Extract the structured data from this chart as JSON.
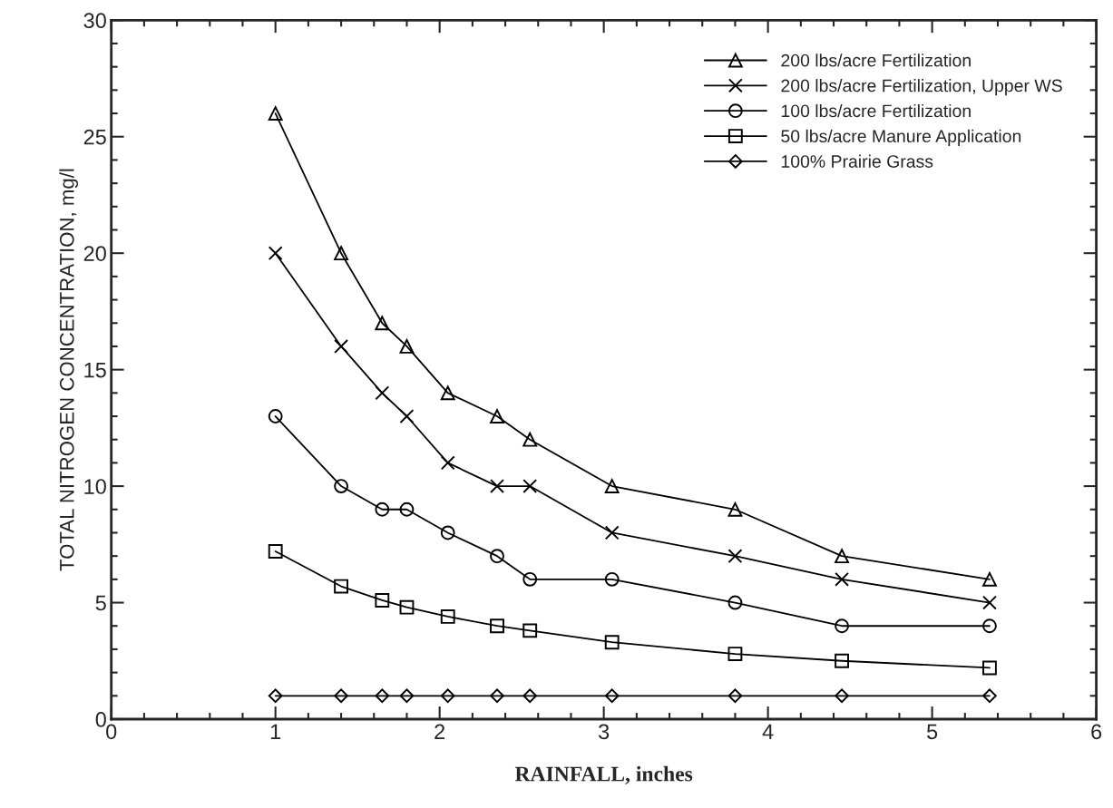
{
  "chart_data": {
    "type": "line",
    "xlabel": "RAINFALL, inches",
    "ylabel": "TOTAL NITROGEN CONCENTRATION, mg/l",
    "x": [
      1.0,
      1.4,
      1.65,
      1.8,
      2.05,
      2.35,
      2.55,
      3.05,
      3.8,
      4.45,
      5.35
    ],
    "series": [
      {
        "name": "200 lbs/acre Fertilization",
        "color": "#000000",
        "marker": "triangle",
        "values": [
          26,
          20,
          17,
          16,
          14,
          13,
          12,
          10,
          9,
          7,
          6
        ]
      },
      {
        "name": "200 lbs/acre Fertilization, Upper WS",
        "color": "#000000",
        "marker": "cross",
        "values": [
          20,
          16,
          14,
          13,
          11,
          10,
          10,
          8,
          7,
          6,
          5
        ]
      },
      {
        "name": "100 lbs/acre Fertilization",
        "color": "#000000",
        "marker": "circle",
        "values": [
          13,
          10,
          9,
          9,
          8,
          7,
          6,
          6,
          5,
          4,
          4
        ]
      },
      {
        "name": "50 lbs/acre Manure Application",
        "color": "#000000",
        "marker": "square",
        "values": [
          7.2,
          5.7,
          5.1,
          4.8,
          4.4,
          4.0,
          3.8,
          3.3,
          2.8,
          2.5,
          2.2
        ]
      },
      {
        "name": "100% Prairie Grass",
        "color": "#000000",
        "marker": "diamond",
        "values": [
          1,
          1,
          1,
          1,
          1,
          1,
          1,
          1,
          1,
          1,
          1
        ]
      }
    ],
    "xlim": [
      0,
      6
    ],
    "xticks": [
      0,
      1,
      2,
      3,
      4,
      5,
      6
    ],
    "ylim": [
      0,
      30
    ],
    "yticks": [
      0,
      5,
      10,
      15,
      20,
      25,
      30
    ],
    "grid": false,
    "legend": "top right",
    "line_style": "solid"
  }
}
